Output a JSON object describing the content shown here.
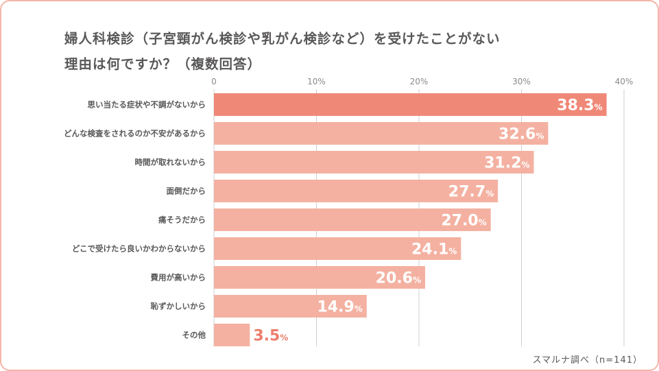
{
  "chart_data": {
    "type": "bar",
    "orientation": "horizontal",
    "title_lines": [
      "婦人科検診（子宮頸がん検診や乳がん検診など）を受けたことがない",
      "理由は何ですか？（複数回答）"
    ],
    "categories": [
      "思い当たる症状や不調がないから",
      "どんな検査をされるのか不安があるから",
      "時間が取れないから",
      "面倒だから",
      "痛そうだから",
      "どこで受けたら良いかわからないから",
      "費用が高いから",
      "恥ずかしいから",
      "その他"
    ],
    "values": [
      38.3,
      32.6,
      31.2,
      27.7,
      27.0,
      24.1,
      20.6,
      14.9,
      3.5
    ],
    "value_labels": [
      "38.3",
      "32.6",
      "31.2",
      "27.7",
      "27.0",
      "24.1",
      "20.6",
      "14.9",
      "3.5"
    ],
    "value_suffix": "%",
    "xlim": [
      0,
      40
    ],
    "ticks": [
      0,
      10,
      20,
      30,
      40
    ],
    "tick_labels": [
      "0",
      "10%",
      "20%",
      "30%",
      "40%"
    ],
    "grid": true,
    "xlabel": "",
    "ylabel": "",
    "highlight_index": 0
  },
  "source": "スマルナ調べ（n=141）",
  "colors": {
    "highlight_bar": "#f08878",
    "bar": "#f4b1a1",
    "label_on_bar": "#ffffff",
    "label_outside": "#ec7d6c",
    "grid": "#cfcfcf",
    "border": "#f3b6a8"
  }
}
